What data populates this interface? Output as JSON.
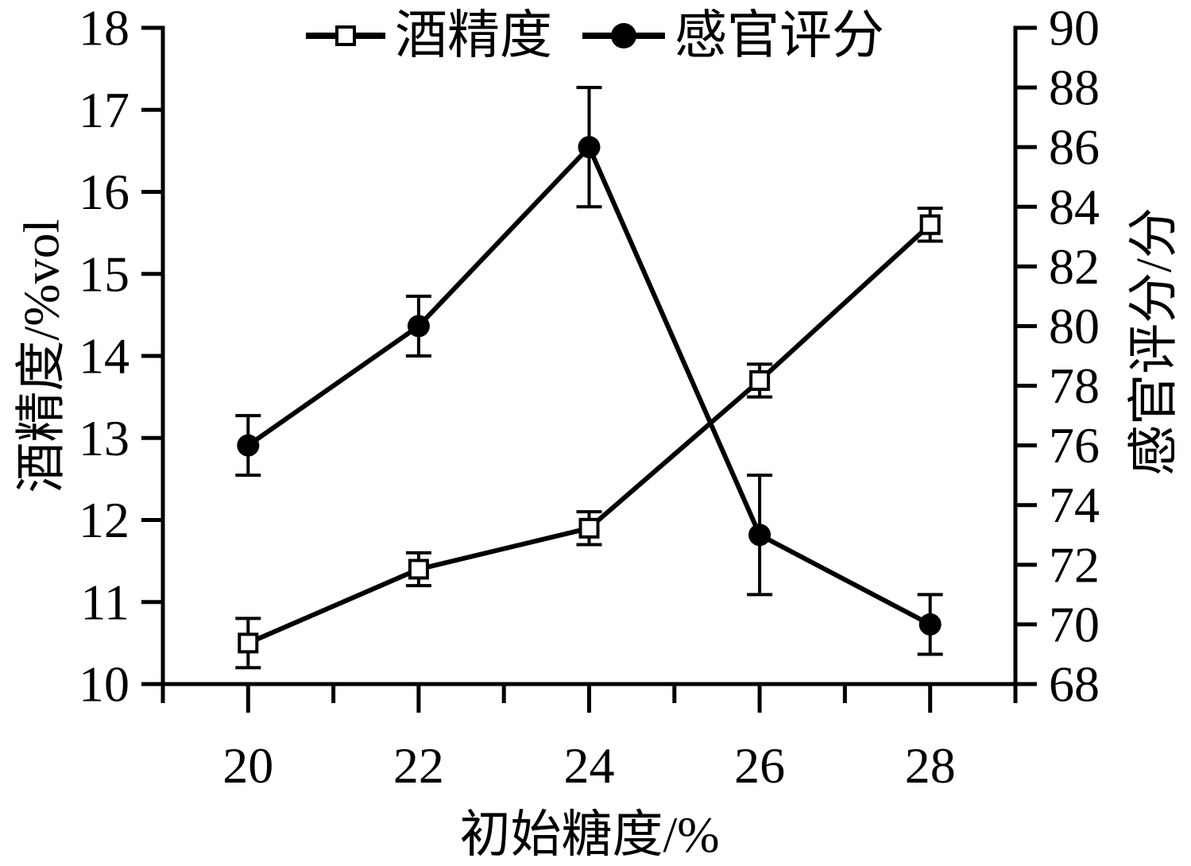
{
  "figure": {
    "background": "#ffffff",
    "ink_color": "#000000"
  },
  "chart_data": {
    "type": "line",
    "title": "",
    "x": [
      20,
      22,
      24,
      26,
      28
    ],
    "xlabel": "初始糖度/%",
    "xlim": [
      19,
      29
    ],
    "x_major_ticks": [
      20,
      22,
      24,
      26,
      28
    ],
    "x_minor_ticks": [
      19,
      21,
      23,
      25,
      27,
      29
    ],
    "left_axis": {
      "label": "酒精度/%vol",
      "min": 10,
      "max": 18,
      "ticks": [
        10,
        11,
        12,
        13,
        14,
        15,
        16,
        17,
        18
      ]
    },
    "right_axis": {
      "label": "感官评分/分",
      "min": 68,
      "max": 90,
      "ticks": [
        68,
        70,
        72,
        74,
        76,
        78,
        80,
        82,
        84,
        86,
        88,
        90
      ]
    },
    "series": [
      {
        "name": "酒精度",
        "axis": "left",
        "marker": "open-square",
        "values": [
          10.5,
          11.4,
          11.9,
          13.7,
          15.6
        ],
        "errors": [
          0.3,
          0.2,
          0.2,
          0.2,
          0.2
        ]
      },
      {
        "name": "感官评分",
        "axis": "right",
        "marker": "filled-circle",
        "values": [
          76,
          80,
          86,
          73,
          70
        ],
        "errors": [
          1,
          1,
          2,
          2,
          1
        ]
      }
    ],
    "legend": {
      "position": "top-center",
      "entries": [
        "酒精度",
        "感官评分"
      ]
    },
    "grid": false,
    "colors": {
      "ink": "#000000",
      "background": "#ffffff"
    }
  }
}
